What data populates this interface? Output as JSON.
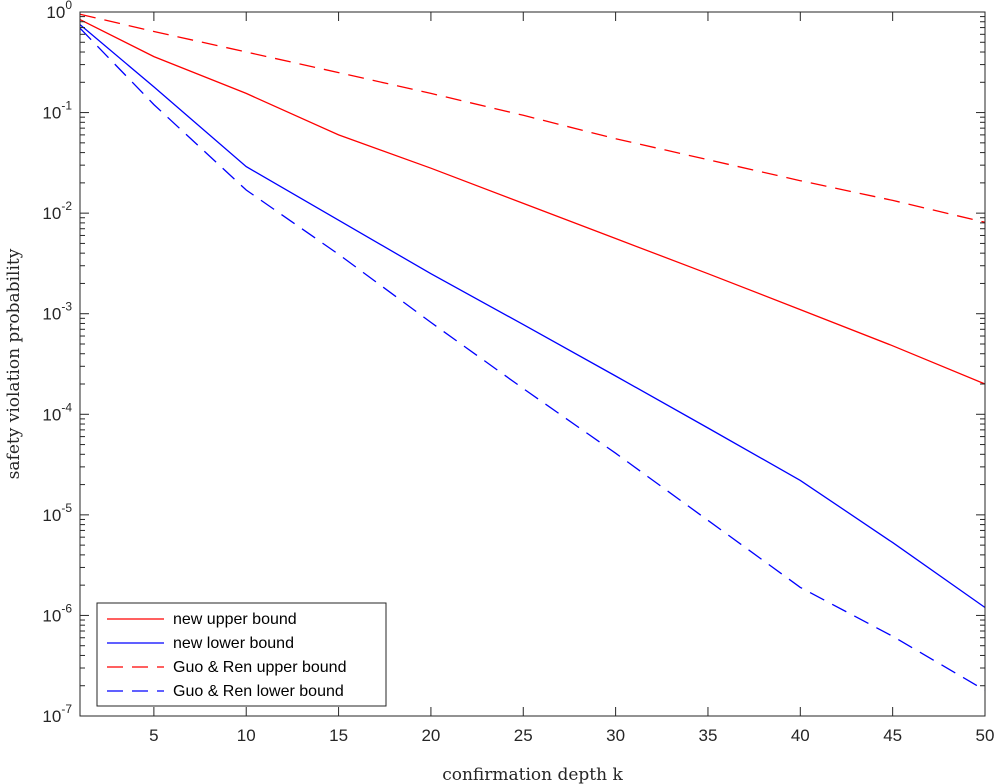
{
  "chart_data": {
    "type": "line",
    "xlabel": "confirmation depth k",
    "ylabel": "safety violation probability",
    "xlim": [
      1,
      50
    ],
    "ylim": [
      1e-07,
      1
    ],
    "yscale": "log",
    "x_ticks": [
      5,
      10,
      15,
      20,
      25,
      30,
      35,
      40,
      45,
      50
    ],
    "y_ticks": [
      {
        "base": "10",
        "exp": "-7",
        "value": 1e-07
      },
      {
        "base": "10",
        "exp": "-6",
        "value": 1e-06
      },
      {
        "base": "10",
        "exp": "-5",
        "value": 1e-05
      },
      {
        "base": "10",
        "exp": "-4",
        "value": 0.0001
      },
      {
        "base": "10",
        "exp": "-3",
        "value": 0.001
      },
      {
        "base": "10",
        "exp": "-2",
        "value": 0.01
      },
      {
        "base": "10",
        "exp": "-1",
        "value": 0.1
      },
      {
        "base": "10",
        "exp": "0",
        "value": 1
      }
    ],
    "grid": false,
    "legend_position": "bottom-left",
    "series": [
      {
        "name": "new upper bound",
        "color": "#ff0000",
        "style": "solid",
        "x": [
          1,
          5,
          10,
          15,
          20,
          25,
          30,
          35,
          40,
          45,
          50
        ],
        "y": [
          0.84,
          0.36,
          0.155,
          0.06,
          0.028,
          0.0125,
          0.0056,
          0.0025,
          0.0011,
          0.00048,
          0.0002
        ]
      },
      {
        "name": "new lower bound",
        "color": "#0000ff",
        "style": "solid",
        "x": [
          1,
          5,
          10,
          15,
          20,
          25,
          30,
          35,
          40,
          45,
          50
        ],
        "y": [
          0.75,
          0.18,
          0.029,
          0.0085,
          0.0025,
          0.00078,
          0.00024,
          7.3e-05,
          2.2e-05,
          5.3e-06,
          1.2e-06
        ]
      },
      {
        "name": "Guo & Ren upper bound",
        "color": "#ff0000",
        "style": "dashed",
        "x": [
          1,
          5,
          10,
          15,
          20,
          25,
          30,
          35,
          40,
          45,
          50
        ],
        "y": [
          0.95,
          0.64,
          0.4,
          0.25,
          0.155,
          0.094,
          0.055,
          0.034,
          0.021,
          0.0134,
          0.0081
        ]
      },
      {
        "name": "Guo & Ren lower bound",
        "color": "#0000ff",
        "style": "dashed",
        "x": [
          1,
          5,
          10,
          15,
          20,
          25,
          30,
          35,
          40,
          45,
          50
        ],
        "y": [
          0.69,
          0.12,
          0.017,
          0.0039,
          0.00082,
          0.00018,
          4.1e-05,
          8.8e-06,
          1.9e-06,
          6.2e-07,
          1.8e-07
        ]
      }
    ]
  }
}
